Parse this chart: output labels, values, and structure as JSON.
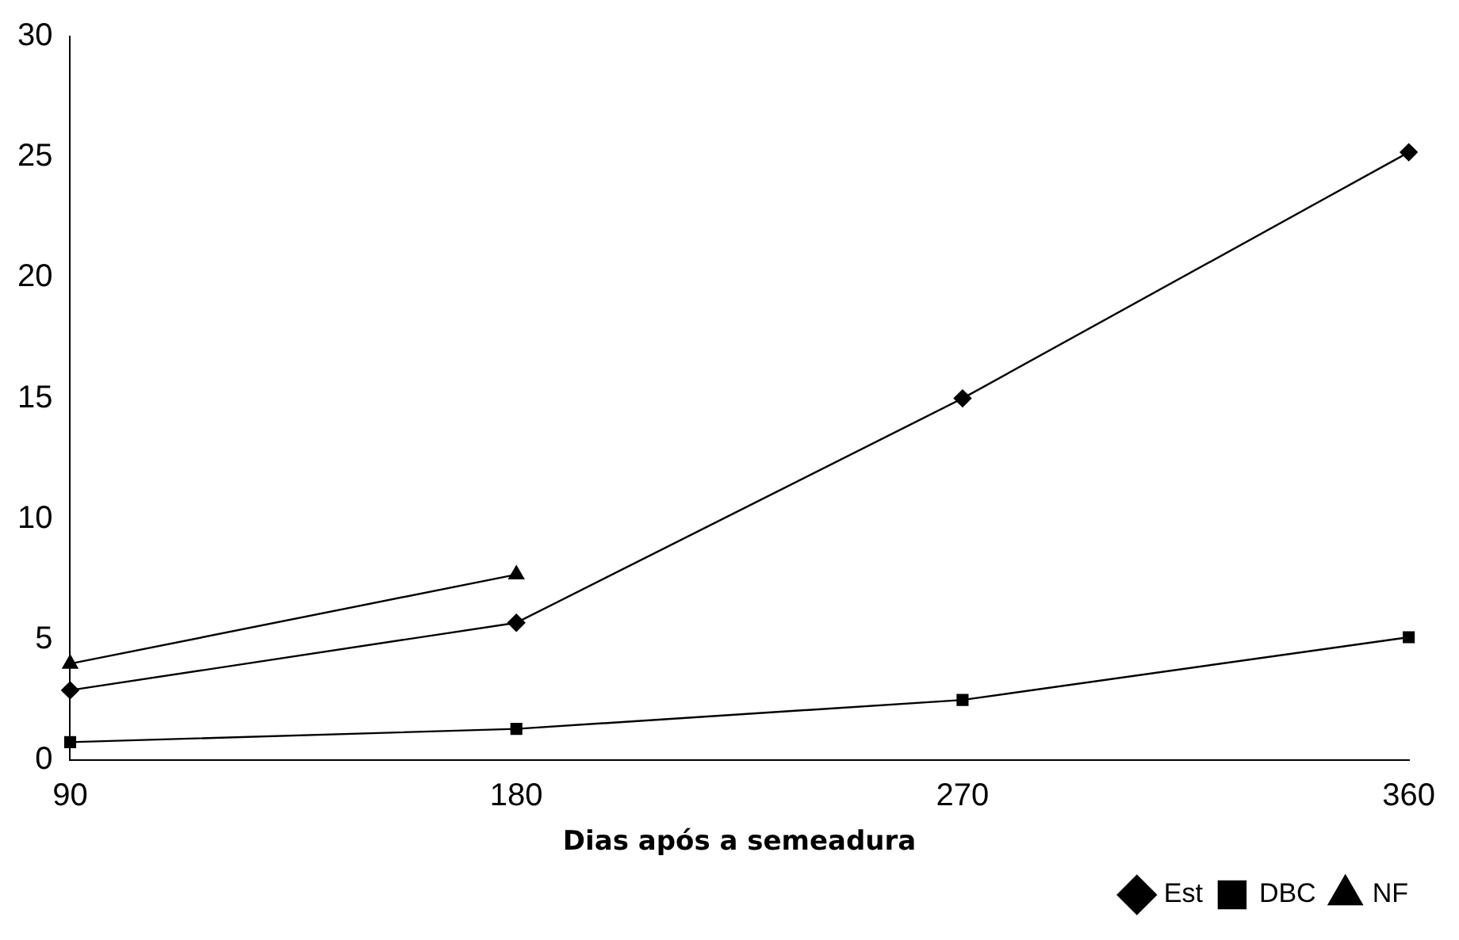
{
  "chart_data": {
    "type": "line",
    "xlabel": "Dias após a semeadura",
    "categories": [
      "90",
      "180",
      "270",
      "360"
    ],
    "series": [
      {
        "name": "Est",
        "color": "#000000",
        "marker": "diamond",
        "values": [
          2.9,
          5.7,
          15.0,
          25.2
        ]
      },
      {
        "name": "DBC",
        "color": "#000000",
        "marker": "square",
        "values": [
          0.75,
          1.3,
          2.5,
          5.1
        ]
      },
      {
        "name": "NF",
        "color": "#000000",
        "marker": "triangle",
        "values": [
          4.0,
          7.7,
          null,
          null
        ]
      }
    ],
    "ylim": [
      0,
      30
    ],
    "yticks": [
      0,
      5,
      10,
      15,
      20,
      25,
      30
    ],
    "grid": false,
    "legend": "bottom right",
    "line_style": "solid"
  }
}
